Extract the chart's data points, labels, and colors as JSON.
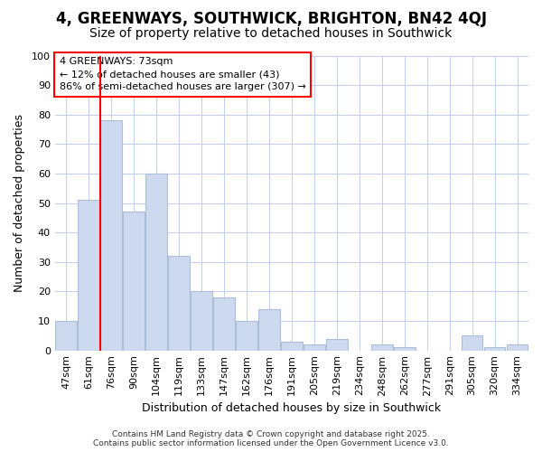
{
  "title": "4, GREENWAYS, SOUTHWICK, BRIGHTON, BN42 4QJ",
  "subtitle": "Size of property relative to detached houses in Southwick",
  "xlabel": "Distribution of detached houses by size in Southwick",
  "ylabel": "Number of detached properties",
  "categories": [
    "47sqm",
    "61sqm",
    "76sqm",
    "90sqm",
    "104sqm",
    "119sqm",
    "133sqm",
    "147sqm",
    "162sqm",
    "176sqm",
    "191sqm",
    "205sqm",
    "219sqm",
    "234sqm",
    "248sqm",
    "262sqm",
    "277sqm",
    "291sqm",
    "305sqm",
    "320sqm",
    "334sqm"
  ],
  "values": [
    10,
    51,
    78,
    47,
    60,
    32,
    20,
    18,
    10,
    14,
    3,
    2,
    4,
    0,
    2,
    1,
    0,
    0,
    5,
    1,
    2
  ],
  "bar_color": "#ccd9ee",
  "bar_edgecolor": "#aabdd9",
  "redline_index": 2,
  "annotation_title": "4 GREENWAYS: 73sqm",
  "annotation_line1": "← 12% of detached houses are smaller (43)",
  "annotation_line2": "86% of semi-detached houses are larger (307) →",
  "ylim": [
    0,
    100
  ],
  "yticks": [
    0,
    10,
    20,
    30,
    40,
    50,
    60,
    70,
    80,
    90,
    100
  ],
  "background_color": "#ffffff",
  "plot_bg_color": "#ffffff",
  "grid_color": "#c0ceea",
  "title_fontsize": 12,
  "subtitle_fontsize": 10,
  "axis_label_fontsize": 9,
  "tick_fontsize": 8,
  "annotation_fontsize": 8,
  "footer_text": "Contains HM Land Registry data © Crown copyright and database right 2025.\nContains public sector information licensed under the Open Government Licence v3.0."
}
